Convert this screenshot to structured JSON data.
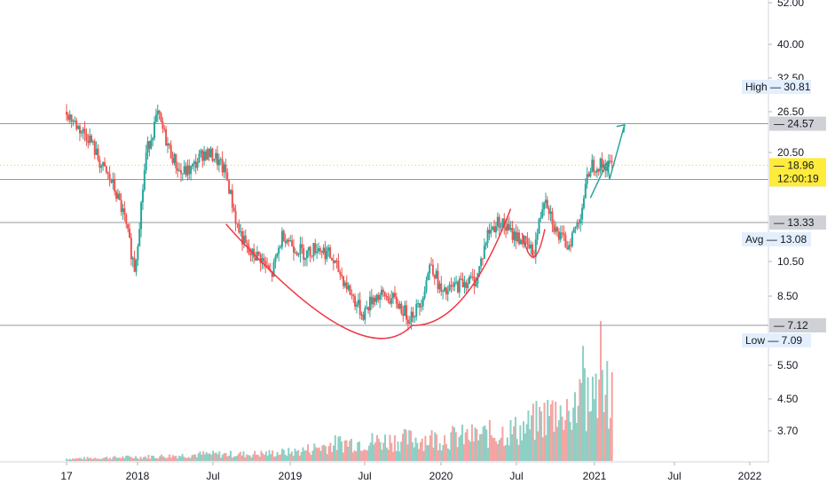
{
  "chart_data": {
    "type": "candlestick",
    "price_axis": {
      "tick_labels": [
        "52.00",
        "40.00",
        "32.50",
        "26.50",
        "20.50",
        "10.50",
        "8.50",
        "5.50",
        "4.50",
        "3.70"
      ],
      "scale": "log",
      "ylim": [
        2.9,
        52
      ]
    },
    "time_axis": {
      "tick_labels": [
        "17",
        "2018",
        "Jul",
        "2019",
        "Jul",
        "2020",
        "Jul",
        "2021",
        "Jul",
        "2022"
      ],
      "range": [
        "2017-06",
        "2022-06"
      ]
    },
    "price_levels": [
      {
        "label": "24.57",
        "value": 24.57,
        "style": "line"
      },
      {
        "label": "17.36",
        "value": 17.36,
        "style": "line"
      },
      {
        "label": "13.33",
        "value": 13.33,
        "style": "line"
      },
      {
        "label": "7.12",
        "value": 7.12,
        "style": "line"
      },
      {
        "label": "18.96",
        "value": 18.96,
        "style": "last-price-dotted"
      }
    ],
    "stats": [
      {
        "name": "High",
        "value": "30.81"
      },
      {
        "name": "Avg",
        "value": "13.08"
      },
      {
        "name": "Low",
        "value": "7.09"
      }
    ],
    "last_price": {
      "value": "18.96",
      "countdown": "12:00:19"
    },
    "price_path": {
      "dates": [
        "2017-06",
        "2017-07",
        "2017-08",
        "2017-09",
        "2017-10",
        "2017-11",
        "2017-12",
        "2018-01",
        "2018-02",
        "2018-03",
        "2018-04",
        "2018-05",
        "2018-06",
        "2018-07",
        "2018-08",
        "2018-09",
        "2018-10",
        "2018-11",
        "2018-12",
        "2019-01",
        "2019-02",
        "2019-03",
        "2019-04",
        "2019-05",
        "2019-06",
        "2019-07",
        "2019-08",
        "2019-09",
        "2019-10",
        "2019-11",
        "2019-12",
        "2020-01",
        "2020-02",
        "2020-03",
        "2020-04",
        "2020-05",
        "2020-06",
        "2020-07",
        "2020-08",
        "2020-09",
        "2020-10",
        "2020-11",
        "2020-12",
        "2021-01",
        "2021-02",
        "2021-03",
        "2021-04",
        "2021-05"
      ],
      "closes": [
        26.5,
        24.0,
        22.5,
        19.0,
        17.0,
        14.0,
        10.0,
        20.5,
        26.0,
        21.0,
        18.0,
        18.5,
        20.5,
        20.0,
        18.0,
        13.0,
        11.0,
        10.8,
        9.6,
        12.5,
        11.5,
        11.0,
        11.5,
        11.0,
        9.8,
        8.6,
        7.6,
        8.5,
        8.5,
        8.2,
        7.5,
        8.0,
        10.5,
        8.5,
        9.0,
        9.3,
        9.4,
        12.5,
        13.5,
        12.5,
        12.0,
        11.0,
        16.0,
        12.5,
        11.6,
        13.5,
        19.0,
        18.96
      ]
    },
    "volume_path": {
      "dates": [
        "2017-06",
        "2017-10",
        "2018-02",
        "2018-06",
        "2018-10",
        "2019-02",
        "2019-06",
        "2019-10",
        "2020-02",
        "2020-06",
        "2020-10",
        "2021-01",
        "2021-03",
        "2021-05"
      ],
      "values": [
        0.02,
        0.03,
        0.04,
        0.06,
        0.06,
        0.08,
        0.16,
        0.18,
        0.2,
        0.22,
        0.28,
        0.45,
        0.55,
        0.6
      ]
    },
    "annotations": [
      {
        "type": "cup-curve",
        "color": "#f23645"
      },
      {
        "type": "handle-curve",
        "color": "#f23645"
      },
      {
        "type": "projection-arrow",
        "color": "#26a69a",
        "target": 24.57
      }
    ],
    "colors": {
      "up": "#26a69a",
      "down": "#ef5350",
      "level_line": "#9598a1",
      "last_price": "#ffeb3b",
      "stat_bg": "#e3effd"
    }
  }
}
